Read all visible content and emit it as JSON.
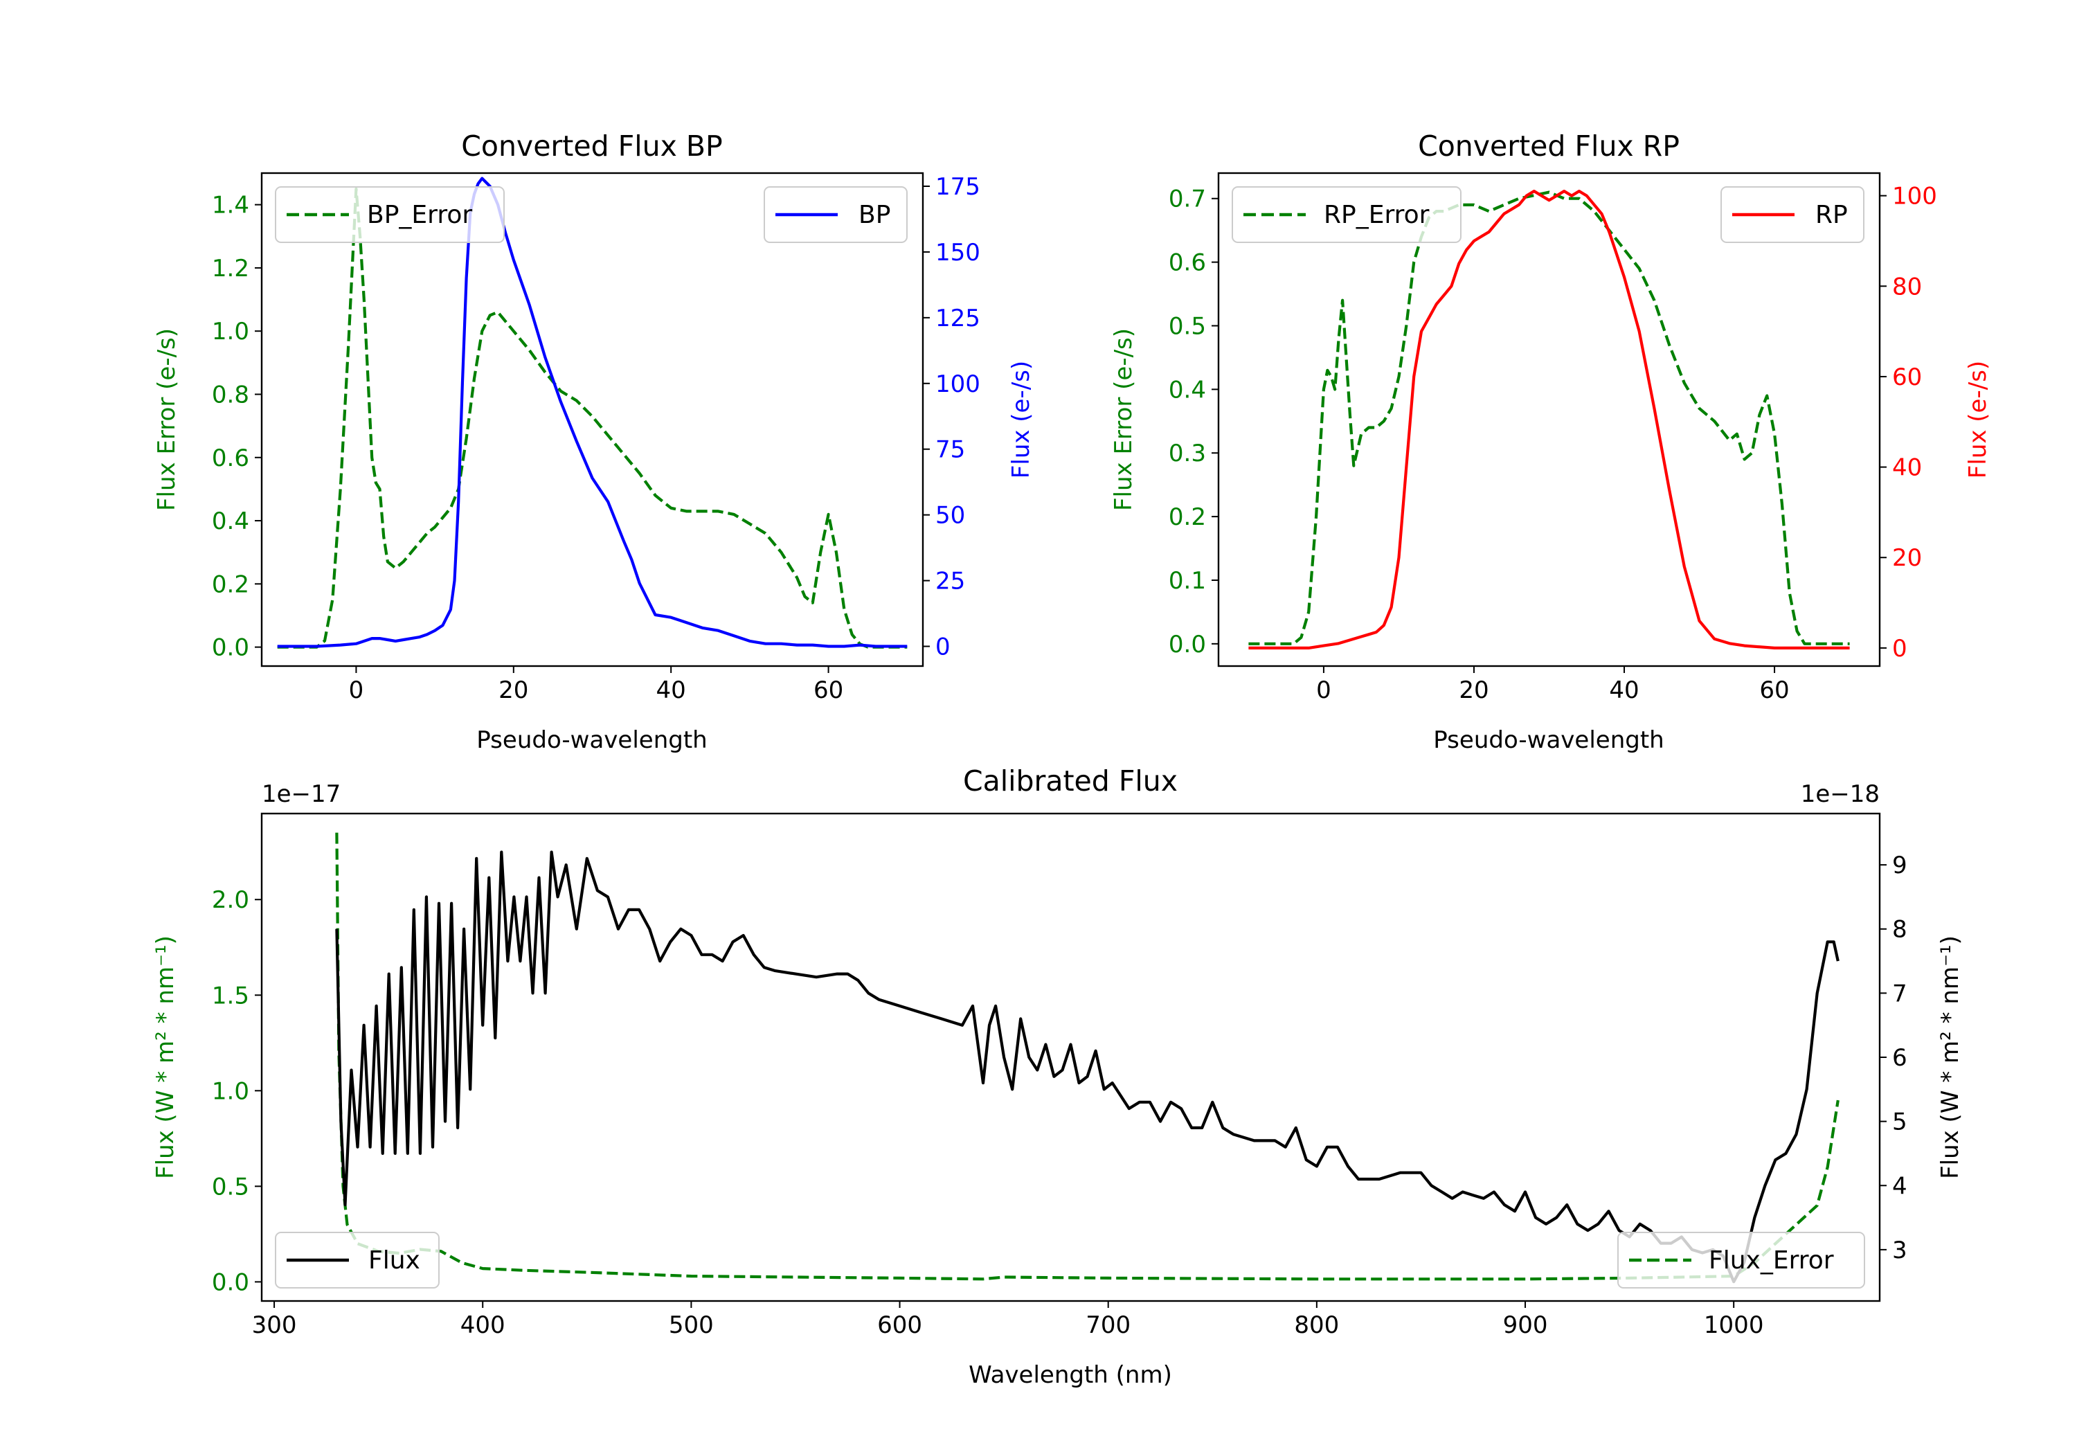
{
  "colors": {
    "bp": "#0000ff",
    "rp": "#ff0000",
    "error": "#008000",
    "flux": "#000000",
    "axis": "#000000",
    "background": "#ffffff"
  },
  "chart_data": [
    {
      "type": "line",
      "title": "Converted Flux BP",
      "xlabel": "Pseudo-wavelength",
      "xlim": [
        -12,
        72
      ],
      "xticks": [
        "0",
        "20",
        "40",
        "60"
      ],
      "xtick_values": [
        0,
        20,
        40,
        60
      ],
      "left_axis": {
        "label": "Flux Error (e-/s)",
        "ylim": [
          -0.06,
          1.5
        ],
        "ticks": [
          "0.0",
          "0.2",
          "0.4",
          "0.6",
          "0.8",
          "1.0",
          "1.2",
          "1.4"
        ],
        "tick_values": [
          0,
          0.2,
          0.4,
          0.6,
          0.8,
          1.0,
          1.2,
          1.4
        ]
      },
      "right_axis": {
        "label": "Flux (e-/s)",
        "ylim": [
          -7.5,
          180
        ],
        "ticks": [
          "0",
          "25",
          "50",
          "75",
          "100",
          "125",
          "150",
          "175"
        ],
        "tick_values": [
          0,
          25,
          50,
          75,
          100,
          125,
          150,
          175
        ]
      },
      "series": [
        {
          "name": "BP_Error",
          "axis": "left",
          "style": "dashed",
          "color": "#008000",
          "x": [
            -10,
            -5,
            -4,
            -3,
            -2,
            -1,
            0,
            0.5,
            1,
            2,
            2.5,
            3,
            3.5,
            4,
            5,
            6,
            7,
            8,
            9,
            10,
            11,
            12,
            13,
            14,
            15,
            16,
            17,
            18,
            20,
            22,
            24,
            26,
            28,
            30,
            32,
            34,
            36,
            38,
            40,
            42,
            44,
            46,
            48,
            50,
            52,
            54,
            56,
            57,
            58,
            59,
            60,
            61,
            62,
            63,
            64,
            65,
            66,
            70
          ],
          "values": [
            0,
            0,
            0.02,
            0.15,
            0.5,
            0.95,
            1.45,
            1.3,
            1.1,
            0.6,
            0.52,
            0.5,
            0.35,
            0.27,
            0.25,
            0.27,
            0.3,
            0.33,
            0.36,
            0.38,
            0.41,
            0.44,
            0.5,
            0.66,
            0.85,
            1.0,
            1.05,
            1.06,
            1.0,
            0.94,
            0.87,
            0.81,
            0.78,
            0.73,
            0.67,
            0.61,
            0.55,
            0.48,
            0.44,
            0.43,
            0.43,
            0.43,
            0.42,
            0.39,
            0.36,
            0.3,
            0.22,
            0.16,
            0.14,
            0.3,
            0.42,
            0.3,
            0.12,
            0.04,
            0.01,
            0,
            0,
            0
          ]
        },
        {
          "name": "BP",
          "axis": "right",
          "style": "solid",
          "color": "#0000ff",
          "x": [
            -10,
            -5,
            -2,
            0,
            2,
            3,
            4,
            5,
            6,
            7,
            8,
            9,
            10,
            11,
            12,
            12.5,
            13,
            13.5,
            14,
            14.5,
            15,
            15.5,
            16,
            17,
            18,
            19,
            20,
            22,
            24,
            26,
            28,
            30,
            32,
            34,
            35,
            36,
            38,
            40,
            41,
            42,
            44,
            46,
            48,
            50,
            52,
            54,
            56,
            58,
            60,
            62,
            64,
            66,
            70
          ],
          "values": [
            0,
            0,
            0.5,
            1,
            3,
            3,
            2.5,
            2,
            2.5,
            3,
            3.5,
            4.5,
            6,
            8,
            14,
            25,
            55,
            100,
            140,
            165,
            172,
            176,
            178,
            175,
            168,
            157,
            147,
            130,
            110,
            93,
            78,
            64,
            55,
            40,
            33,
            24,
            12,
            11,
            10,
            9,
            7,
            6,
            4,
            2,
            1,
            1,
            0.5,
            0.5,
            0,
            0,
            0.5,
            0,
            0
          ]
        }
      ],
      "legend": [
        {
          "label": "BP_Error",
          "placement": "upper-left"
        },
        {
          "label": "BP",
          "placement": "upper-right"
        }
      ]
    },
    {
      "type": "line",
      "title": "Converted Flux RP",
      "xlabel": "Pseudo-wavelength",
      "xlim": [
        -14,
        74
      ],
      "xticks": [
        "0",
        "20",
        "40",
        "60"
      ],
      "xtick_values": [
        0,
        20,
        40,
        60
      ],
      "left_axis": {
        "label": "Flux Error (e-/s)",
        "ylim": [
          -0.035,
          0.74
        ],
        "ticks": [
          "0.0",
          "0.1",
          "0.2",
          "0.3",
          "0.4",
          "0.5",
          "0.6",
          "0.7"
        ],
        "tick_values": [
          0,
          0.1,
          0.2,
          0.3,
          0.4,
          0.5,
          0.6,
          0.7
        ]
      },
      "right_axis": {
        "label": "Flux (e-/s)",
        "ylim": [
          -4,
          105
        ],
        "ticks": [
          "0",
          "20",
          "40",
          "60",
          "80",
          "100"
        ],
        "tick_values": [
          0,
          20,
          40,
          60,
          80,
          100
        ]
      },
      "series": [
        {
          "name": "RP_Error",
          "axis": "left",
          "style": "dashed",
          "color": "#008000",
          "x": [
            -10,
            -4,
            -3,
            -2,
            -1,
            0,
            0.5,
            1,
            1.5,
            2,
            2.5,
            3,
            3.5,
            4,
            5,
            6,
            7,
            8,
            9,
            10,
            11,
            12,
            13,
            14,
            15,
            16,
            18,
            20,
            22,
            24,
            26,
            28,
            30,
            32,
            34,
            36,
            38,
            40,
            42,
            44,
            46,
            48,
            50,
            52,
            54,
            55,
            56,
            57,
            58,
            59,
            60,
            61,
            62,
            63,
            64,
            70
          ],
          "values": [
            0,
            0,
            0.01,
            0.05,
            0.2,
            0.4,
            0.43,
            0.42,
            0.4,
            0.48,
            0.54,
            0.45,
            0.36,
            0.28,
            0.33,
            0.34,
            0.34,
            0.35,
            0.37,
            0.42,
            0.5,
            0.6,
            0.64,
            0.67,
            0.68,
            0.68,
            0.69,
            0.69,
            0.68,
            0.69,
            0.7,
            0.705,
            0.71,
            0.7,
            0.7,
            0.68,
            0.65,
            0.62,
            0.59,
            0.54,
            0.47,
            0.41,
            0.37,
            0.35,
            0.32,
            0.33,
            0.29,
            0.3,
            0.36,
            0.39,
            0.33,
            0.22,
            0.08,
            0.02,
            0,
            0
          ]
        },
        {
          "name": "RP",
          "axis": "right",
          "style": "solid",
          "color": "#ff0000",
          "x": [
            -10,
            -2,
            0,
            2,
            4,
            5,
            6,
            7,
            8,
            9,
            10,
            11,
            12,
            13,
            14,
            15,
            16,
            17,
            18,
            19,
            20,
            21,
            22,
            23,
            24,
            25,
            26,
            27,
            28,
            29,
            30,
            31,
            32,
            33,
            34,
            35,
            36,
            37,
            38,
            39,
            40,
            42,
            44,
            46,
            48,
            50,
            52,
            54,
            56,
            60,
            70
          ],
          "values": [
            0,
            0,
            0.5,
            1,
            2,
            2.5,
            3,
            3.5,
            5,
            9,
            20,
            40,
            60,
            70,
            73,
            76,
            78,
            80,
            85,
            88,
            90,
            91,
            92,
            94,
            96,
            97,
            98,
            100,
            101,
            100,
            99,
            100,
            101,
            100,
            101,
            100,
            98,
            96,
            92,
            87,
            82,
            70,
            53,
            35,
            18,
            6,
            2,
            1,
            0.5,
            0,
            0
          ]
        }
      ],
      "legend": [
        {
          "label": "RP_Error",
          "placement": "upper-left"
        },
        {
          "label": "RP",
          "placement": "upper-right"
        }
      ]
    },
    {
      "type": "line",
      "title": "Calibrated Flux",
      "xlabel": "Wavelength (nm)",
      "xlim": [
        294,
        1070
      ],
      "xticks": [
        "300",
        "400",
        "500",
        "600",
        "700",
        "800",
        "900",
        "1000"
      ],
      "xtick_values": [
        300,
        400,
        500,
        600,
        700,
        800,
        900,
        1000
      ],
      "left_axis": {
        "label": "Flux (W * m² * nm⁻¹)",
        "offset_text": "1e−17",
        "ylim": [
          -0.1,
          2.45
        ],
        "ticks": [
          "0.0",
          "0.5",
          "1.0",
          "1.5",
          "2.0"
        ],
        "tick_values": [
          0,
          0.5,
          1.0,
          1.5,
          2.0
        ]
      },
      "right_axis": {
        "label": "Flux (W * m² * nm⁻¹)",
        "offset_text": "1e−18",
        "ylim": [
          2.2,
          9.8
        ],
        "ticks": [
          "3",
          "4",
          "5",
          "6",
          "7",
          "8",
          "9"
        ],
        "tick_values": [
          3,
          4,
          5,
          6,
          7,
          8,
          9
        ]
      },
      "series": [
        {
          "name": "Flux_Error",
          "axis": "left",
          "style": "dashed",
          "color": "#008000",
          "x": [
            330,
            331,
            333,
            335,
            340,
            350,
            360,
            370,
            380,
            390,
            400,
            420,
            450,
            500,
            550,
            600,
            640,
            650,
            700,
            800,
            900,
            950,
            1000,
            1010,
            1020,
            1030,
            1040,
            1045,
            1050
          ],
          "values": [
            2.35,
            1.2,
            0.5,
            0.3,
            0.2,
            0.16,
            0.15,
            0.17,
            0.16,
            0.1,
            0.07,
            0.06,
            0.05,
            0.03,
            0.025,
            0.02,
            0.015,
            0.025,
            0.02,
            0.015,
            0.015,
            0.02,
            0.03,
            0.1,
            0.2,
            0.3,
            0.4,
            0.6,
            0.95
          ]
        },
        {
          "name": "Flux",
          "axis": "right",
          "style": "solid",
          "color": "#000000",
          "x": [
            330,
            332,
            334,
            337,
            340,
            343,
            346,
            349,
            352,
            355,
            358,
            361,
            364,
            367,
            370,
            373,
            376,
            379,
            382,
            385,
            388,
            391,
            394,
            397,
            400,
            403,
            406,
            409,
            412,
            415,
            418,
            421,
            424,
            427,
            430,
            433,
            436,
            440,
            445,
            450,
            455,
            460,
            465,
            470,
            475,
            480,
            485,
            490,
            495,
            500,
            505,
            510,
            515,
            520,
            525,
            530,
            535,
            540,
            550,
            560,
            570,
            575,
            580,
            585,
            590,
            600,
            610,
            620,
            630,
            635,
            640,
            643,
            646,
            650,
            654,
            658,
            662,
            666,
            670,
            674,
            678,
            682,
            686,
            690,
            694,
            698,
            702,
            706,
            710,
            715,
            720,
            725,
            730,
            735,
            740,
            745,
            750,
            755,
            760,
            770,
            780,
            785,
            790,
            795,
            800,
            805,
            810,
            815,
            820,
            830,
            840,
            850,
            855,
            860,
            865,
            870,
            875,
            880,
            885,
            890,
            895,
            900,
            905,
            910,
            915,
            920,
            925,
            930,
            935,
            940,
            945,
            950,
            955,
            960,
            965,
            970,
            975,
            980,
            985,
            990,
            995,
            1000,
            1005,
            1010,
            1015,
            1020,
            1025,
            1030,
            1035,
            1040,
            1045,
            1048,
            1050
          ],
          "values": [
            8,
            5,
            3.7,
            5.8,
            4.6,
            6.5,
            4.6,
            6.8,
            4.5,
            7.3,
            4.5,
            7.4,
            4.5,
            8.3,
            4.5,
            8.5,
            4.6,
            8.4,
            5.0,
            8.4,
            4.9,
            8.0,
            5.5,
            9.1,
            6.5,
            8.8,
            6.3,
            9.2,
            7.5,
            8.5,
            7.5,
            8.5,
            7.0,
            8.8,
            7.0,
            9.2,
            8.5,
            9.0,
            8.0,
            9.1,
            8.6,
            8.5,
            8.0,
            8.3,
            8.3,
            8.0,
            7.5,
            7.8,
            8.0,
            7.9,
            7.6,
            7.6,
            7.5,
            7.8,
            7.9,
            7.6,
            7.4,
            7.35,
            7.3,
            7.25,
            7.3,
            7.3,
            7.2,
            7.0,
            6.9,
            6.8,
            6.7,
            6.6,
            6.5,
            6.8,
            5.6,
            6.5,
            6.8,
            6.0,
            5.5,
            6.6,
            6.0,
            5.8,
            6.2,
            5.7,
            5.8,
            6.2,
            5.6,
            5.7,
            6.1,
            5.5,
            5.6,
            5.4,
            5.2,
            5.3,
            5.3,
            5.0,
            5.3,
            5.2,
            4.9,
            4.9,
            5.3,
            4.9,
            4.8,
            4.7,
            4.7,
            4.6,
            4.9,
            4.4,
            4.3,
            4.6,
            4.6,
            4.3,
            4.1,
            4.1,
            4.2,
            4.2,
            4.0,
            3.9,
            3.8,
            3.9,
            3.85,
            3.8,
            3.9,
            3.7,
            3.6,
            3.9,
            3.5,
            3.4,
            3.5,
            3.7,
            3.4,
            3.3,
            3.4,
            3.6,
            3.3,
            3.2,
            3.4,
            3.3,
            3.1,
            3.1,
            3.2,
            3.0,
            2.95,
            3.0,
            2.9,
            2.5,
            2.8,
            3.5,
            4.0,
            4.4,
            4.5,
            4.8,
            5.5,
            7.0,
            7.8,
            7.8,
            7.5
          ]
        }
      ],
      "legend": [
        {
          "label": "Flux",
          "placement": "lower-left"
        },
        {
          "label": "Flux_Error",
          "placement": "lower-right"
        }
      ]
    }
  ]
}
